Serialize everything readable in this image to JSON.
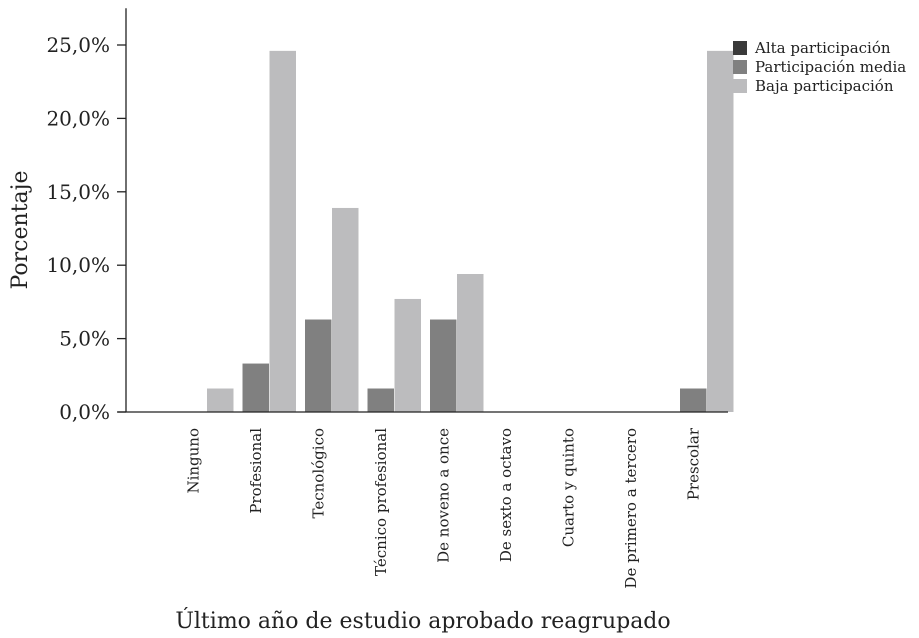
{
  "chart_data": {
    "type": "bar",
    "title": "",
    "xlabel": "Último año de estudio aprobado reagrupado",
    "ylabel": "Porcentaje",
    "ylim": [
      0,
      27.5
    ],
    "yticks": [
      0,
      5,
      10,
      15,
      20,
      25
    ],
    "ytick_labels": [
      "0,0%",
      "5,0%",
      "10,0%",
      "15,0%",
      "20,0%",
      "25,0%"
    ],
    "grid": false,
    "legend_position": "top-right",
    "categories": [
      "Ninguno",
      "Profesional",
      "Tecnológico",
      "Técnico profesional",
      "De noveno a once",
      "De sexto a octavo",
      "Cuarto y quinto",
      "De primero a tercero",
      "Prescolar"
    ],
    "series": [
      {
        "name": "Alta participación",
        "color": "#3a3a3a",
        "values": [
          0,
          0,
          0,
          0,
          0,
          0,
          0,
          0,
          0
        ]
      },
      {
        "name": "Participación media",
        "color": "#808080",
        "values": [
          0,
          3.3,
          6.3,
          1.6,
          6.3,
          0,
          0,
          0,
          1.6
        ]
      },
      {
        "name": "Baja participación",
        "color": "#bcbcbe",
        "values": [
          1.6,
          24.6,
          13.9,
          7.7,
          9.4,
          0,
          0,
          0,
          24.6
        ]
      }
    ]
  }
}
